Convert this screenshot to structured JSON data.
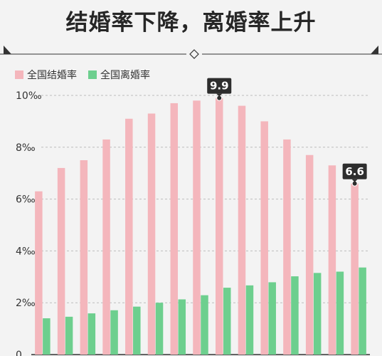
{
  "chart_data": {
    "type": "bar",
    "title": "结婚率下降，离婚率上升",
    "unit": "‰",
    "ylim": [
      0,
      10
    ],
    "yticks": [
      "0",
      "2‰",
      "4‰",
      "6‰",
      "8‰",
      "10‰"
    ],
    "grid": true,
    "legend_position": "top-left",
    "series": [
      {
        "name": "全国结婚率",
        "color": "#f4b6bc",
        "values": [
          6.3,
          7.2,
          7.5,
          8.3,
          9.1,
          9.3,
          9.7,
          9.8,
          9.9,
          9.6,
          9.0,
          8.3,
          7.7,
          7.3,
          6.6
        ]
      },
      {
        "name": "全国离婚率",
        "color": "#6dcf8e",
        "values": [
          1.4,
          1.46,
          1.59,
          1.71,
          1.85,
          2.0,
          2.13,
          2.29,
          2.58,
          2.67,
          2.79,
          3.02,
          3.15,
          3.2,
          3.36
        ]
      }
    ],
    "annotations": [
      {
        "series": 0,
        "index": 8,
        "label": "9.9"
      },
      {
        "series": 0,
        "index": 14,
        "label": "6.6"
      }
    ]
  }
}
